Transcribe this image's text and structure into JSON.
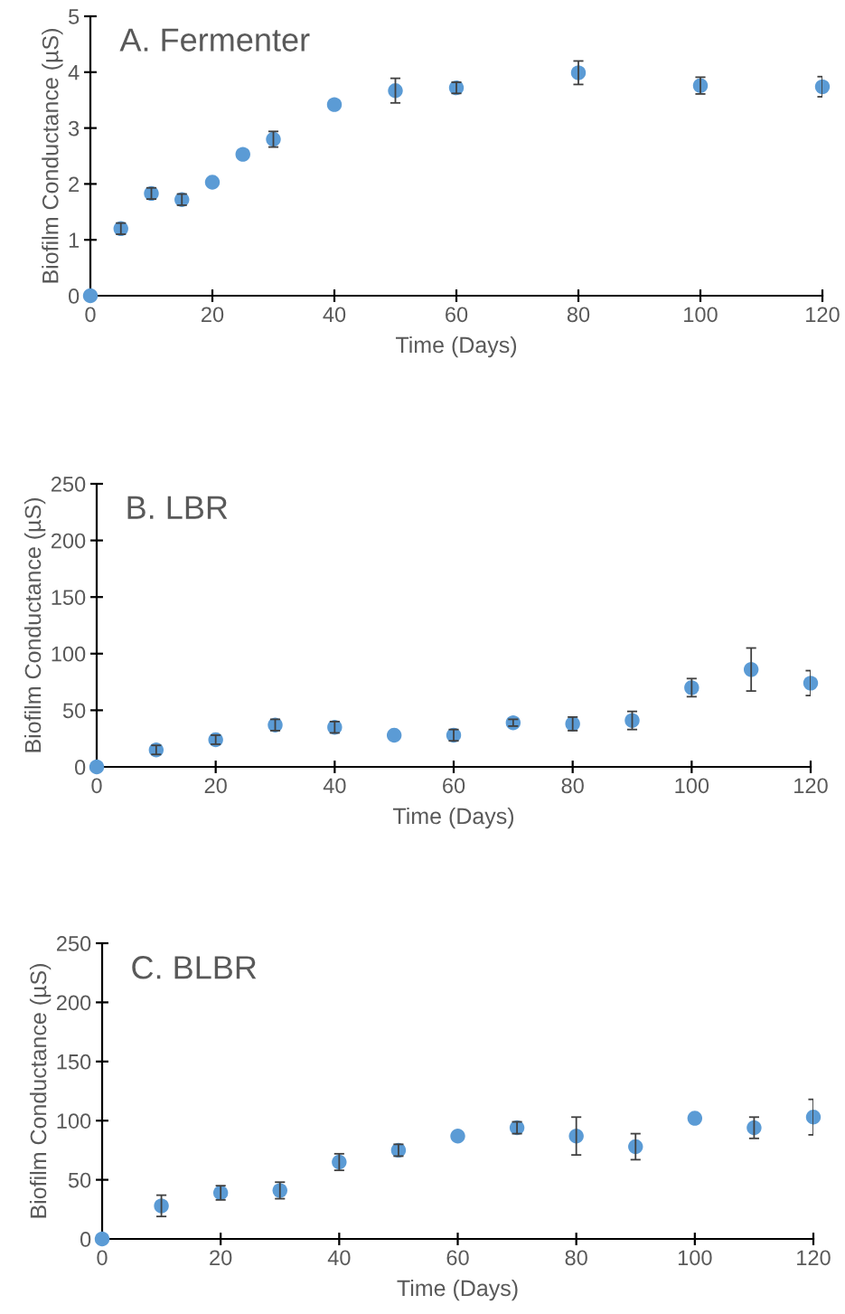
{
  "chart_data": [
    {
      "type": "scatter",
      "title": "A. Fermenter",
      "xlabel": "Time (Days)",
      "ylabel": "Biofilm Conductance (µS)",
      "marker": "circle",
      "grid": false,
      "legend": false,
      "xlim": [
        0,
        120
      ],
      "ylim": [
        0,
        5
      ],
      "xticks": [
        0,
        20,
        40,
        60,
        80,
        100,
        120
      ],
      "yticks": [
        0,
        1,
        2,
        3,
        4,
        5
      ],
      "series": [
        {
          "color": "#5b9bd5",
          "x": [
            0,
            5,
            10,
            15,
            20,
            25,
            30,
            40,
            50,
            60,
            80,
            100,
            120
          ],
          "values": [
            0,
            1.2,
            1.83,
            1.72,
            2.03,
            2.53,
            2.8,
            3.42,
            3.67,
            3.72,
            3.99,
            3.76,
            3.74
          ],
          "errors": [
            null,
            0.1,
            0.1,
            0.1,
            null,
            null,
            0.14,
            null,
            0.22,
            0.1,
            0.21,
            0.15,
            0.18
          ]
        }
      ]
    },
    {
      "type": "scatter",
      "title": "B. LBR",
      "xlabel": "Time (Days)",
      "ylabel": "Biofilm Conductance (µS)",
      "marker": "circle",
      "grid": false,
      "legend": false,
      "xlim": [
        0,
        120
      ],
      "ylim": [
        0,
        250
      ],
      "xticks": [
        0,
        20,
        40,
        60,
        80,
        100,
        120
      ],
      "yticks": [
        0,
        50,
        100,
        150,
        200,
        250
      ],
      "series": [
        {
          "color": "#5b9bd5",
          "x": [
            0,
            10,
            20,
            30,
            40,
            50,
            60,
            70,
            80,
            90,
            100,
            110,
            120
          ],
          "values": [
            0,
            15,
            24,
            37,
            35,
            28,
            28,
            39,
            38,
            41,
            70,
            86,
            74
          ],
          "errors": [
            null,
            4,
            4,
            5,
            5,
            null,
            5,
            3,
            6,
            8,
            8,
            19,
            11
          ]
        }
      ]
    },
    {
      "type": "scatter",
      "title": "C. BLBR",
      "xlabel": "Time (Days)",
      "ylabel": "Biofilm Conductance (µS)",
      "marker": "circle",
      "grid": false,
      "legend": false,
      "xlim": [
        0,
        120
      ],
      "ylim": [
        0,
        250
      ],
      "xticks": [
        0,
        20,
        40,
        60,
        80,
        100,
        120
      ],
      "yticks": [
        0,
        50,
        100,
        150,
        200,
        250
      ],
      "series": [
        {
          "color": "#5b9bd5",
          "x": [
            0,
            10,
            20,
            30,
            40,
            50,
            60,
            70,
            80,
            90,
            100,
            110,
            120
          ],
          "values": [
            0,
            28,
            39,
            41,
            65,
            75,
            87,
            94,
            87,
            78,
            102,
            94,
            103
          ],
          "errors": [
            null,
            9,
            6,
            7,
            7,
            5,
            null,
            5,
            16,
            11,
            null,
            9,
            15
          ]
        }
      ]
    }
  ]
}
